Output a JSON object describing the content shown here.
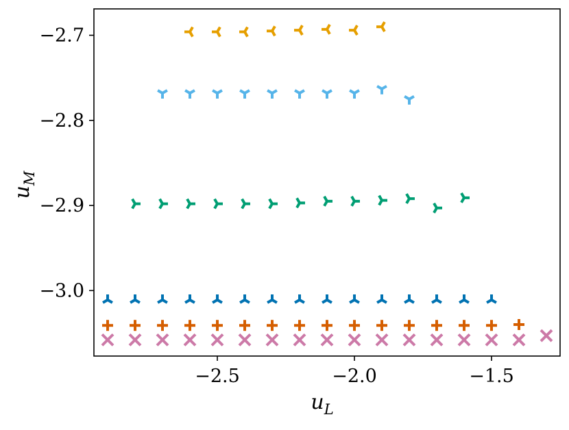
{
  "chart_data": {
    "type": "scatter",
    "title": "",
    "xlabel": "u",
    "xlabel_sub": "L",
    "ylabel": "u",
    "ylabel_sub": "M",
    "xlim": [
      -2.95,
      -1.25
    ],
    "ylim": [
      -3.077,
      -2.669
    ],
    "xticks": [
      -2.5,
      -2.0,
      -1.5
    ],
    "xtick_labels": [
      "−2.5",
      "−2.0",
      "−1.5"
    ],
    "yticks": [
      -2.7,
      -2.8,
      -2.9,
      -3.0
    ],
    "ytick_labels": [
      "−2.7",
      "−2.8",
      "−2.9",
      "−3.0"
    ],
    "grid": false,
    "legend": "none",
    "series": [
      {
        "marker": "tri_right",
        "color": "#E69F00",
        "x": [
          -2.6,
          -2.5,
          -2.4,
          -2.3,
          -2.2,
          -2.1,
          -2.0,
          -1.9
        ],
        "y": [
          -2.696,
          -2.696,
          -2.696,
          -2.695,
          -2.694,
          -2.693,
          -2.694,
          -2.69
        ]
      },
      {
        "marker": "tri_up",
        "color": "#56B4E9",
        "x": [
          -2.7,
          -2.6,
          -2.5,
          -2.4,
          -2.3,
          -2.2,
          -2.1,
          -2.0,
          -1.9,
          -1.8
        ],
        "y": [
          -2.768,
          -2.768,
          -2.768,
          -2.768,
          -2.768,
          -2.768,
          -2.768,
          -2.768,
          -2.763,
          -2.775
        ]
      },
      {
        "marker": "tri_left",
        "color": "#009E73",
        "x": [
          -2.8,
          -2.7,
          -2.6,
          -2.5,
          -2.4,
          -2.3,
          -2.2,
          -2.1,
          -2.0,
          -1.9,
          -1.8,
          -1.7,
          -1.6
        ],
        "y": [
          -2.898,
          -2.898,
          -2.898,
          -2.898,
          -2.898,
          -2.898,
          -2.897,
          -2.895,
          -2.895,
          -2.894,
          -2.892,
          -2.903,
          -2.891
        ]
      },
      {
        "marker": "tri_down",
        "color": "#0072B2",
        "x": [
          -2.9,
          -2.8,
          -2.7,
          -2.6,
          -2.5,
          -2.4,
          -2.3,
          -2.2,
          -2.1,
          -2.0,
          -1.9,
          -1.8,
          -1.7,
          -1.6,
          -1.5
        ],
        "y": [
          -3.011,
          -3.011,
          -3.011,
          -3.011,
          -3.011,
          -3.011,
          -3.011,
          -3.011,
          -3.011,
          -3.011,
          -3.011,
          -3.011,
          -3.011,
          -3.011,
          -3.011
        ]
      },
      {
        "marker": "plus",
        "color": "#D55E00",
        "x": [
          -2.9,
          -2.8,
          -2.7,
          -2.6,
          -2.5,
          -2.4,
          -2.3,
          -2.2,
          -2.1,
          -2.0,
          -1.9,
          -1.8,
          -1.7,
          -1.6,
          -1.5,
          -1.4
        ],
        "y": [
          -3.041,
          -3.041,
          -3.041,
          -3.041,
          -3.041,
          -3.041,
          -3.041,
          -3.041,
          -3.041,
          -3.041,
          -3.041,
          -3.041,
          -3.041,
          -3.041,
          -3.041,
          -3.04
        ]
      },
      {
        "marker": "x",
        "color": "#CC79A7",
        "x": [
          -2.9,
          -2.8,
          -2.7,
          -2.6,
          -2.5,
          -2.4,
          -2.3,
          -2.2,
          -2.1,
          -2.0,
          -1.9,
          -1.8,
          -1.7,
          -1.6,
          -1.5,
          -1.4,
          -1.3
        ],
        "y": [
          -3.058,
          -3.058,
          -3.058,
          -3.058,
          -3.058,
          -3.058,
          -3.058,
          -3.058,
          -3.058,
          -3.058,
          -3.058,
          -3.058,
          -3.058,
          -3.058,
          -3.058,
          -3.058,
          -3.053
        ]
      }
    ]
  }
}
